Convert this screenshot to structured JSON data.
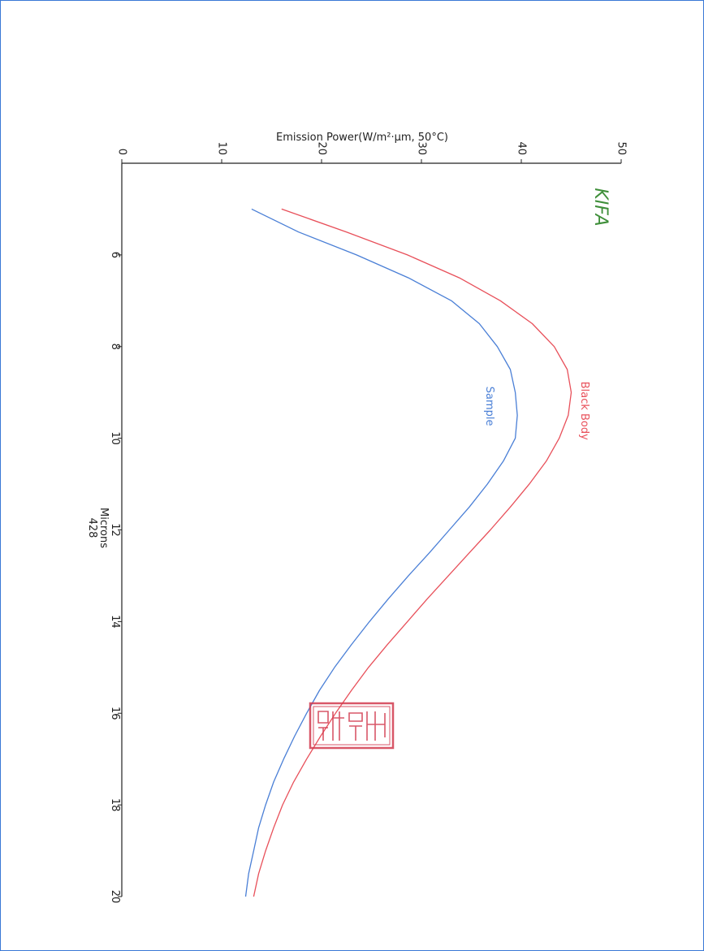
{
  "chart_data": {
    "type": "line",
    "ylabel": "Emission Power(W/m²·µm, 50°C)",
    "xlabel": "Microns",
    "code": "428",
    "logo": "KIFA",
    "xlim": [
      4,
      20
    ],
    "ylim": [
      0,
      50
    ],
    "xticks": [
      6,
      8,
      10,
      12,
      14,
      16,
      18,
      20
    ],
    "yticks": [
      0,
      10,
      20,
      30,
      40,
      50
    ],
    "orientation": "rotated 90° clockwise (x axis runs top-to-bottom, y axis runs left-to-right)",
    "series": [
      {
        "name": "Black Body",
        "color": "#e8505a",
        "x": [
          5.0,
          5.5,
          6.0,
          6.5,
          7.0,
          7.5,
          8.0,
          8.5,
          9.0,
          9.5,
          10.0,
          10.5,
          11.0,
          11.5,
          12.0,
          12.5,
          13.0,
          13.5,
          14.0,
          14.5,
          15.0,
          15.5,
          16.0,
          16.5,
          17.0,
          17.5,
          18.0,
          18.5,
          19.0,
          19.5,
          20.0
        ],
        "values": [
          16.0,
          22.5,
          28.6,
          33.8,
          37.9,
          41.1,
          43.3,
          44.6,
          45.0,
          44.7,
          43.8,
          42.5,
          40.8,
          38.9,
          36.9,
          34.8,
          32.7,
          30.6,
          28.6,
          26.6,
          24.7,
          23.0,
          21.4,
          19.9,
          18.5,
          17.2,
          16.1,
          15.2,
          14.4,
          13.7,
          13.2
        ]
      },
      {
        "name": "Sample",
        "color": "#4a7fd6",
        "x": [
          5.0,
          5.5,
          6.0,
          6.5,
          7.0,
          7.5,
          8.0,
          8.5,
          9.0,
          9.5,
          10.0,
          10.5,
          11.0,
          11.5,
          12.0,
          12.5,
          13.0,
          13.5,
          14.0,
          14.5,
          15.0,
          15.5,
          16.0,
          16.5,
          17.0,
          17.5,
          18.0,
          18.5,
          19.0,
          19.5,
          20.0
        ],
        "values": [
          13.0,
          17.7,
          23.5,
          28.7,
          33.0,
          35.8,
          37.6,
          38.9,
          39.4,
          39.6,
          39.4,
          38.2,
          36.6,
          34.8,
          32.8,
          30.8,
          28.7,
          26.7,
          24.8,
          23.0,
          21.3,
          19.8,
          18.5,
          17.3,
          16.2,
          15.2,
          14.4,
          13.7,
          13.2,
          12.7,
          12.4
        ]
      }
    ],
    "annotations": [
      "Black Body",
      "Sample"
    ]
  }
}
